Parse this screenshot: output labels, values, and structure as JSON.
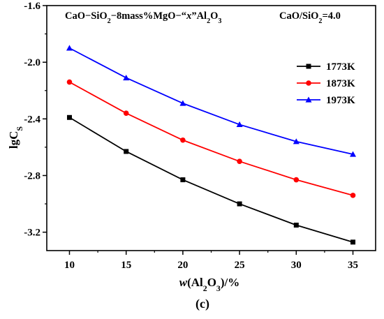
{
  "chart_data": {
    "type": "line",
    "title": {
      "formula": "CaO−SiO2−8mass%MgO−“x”Al2O3",
      "basicity": "CaO/SiO2=4.0"
    },
    "xlabel": "w(Al2O3)/%",
    "ylabel": "lgCS",
    "x": [
      10,
      15,
      20,
      25,
      30,
      35
    ],
    "xlim": [
      8,
      37
    ],
    "ylim": [
      -3.33,
      -1.6
    ],
    "x_ticks": [
      "10",
      "15",
      "20",
      "25",
      "30",
      "35"
    ],
    "y_ticks": [
      "-1.6",
      "-2.0",
      "-2.4",
      "-2.8",
      "-3.2"
    ],
    "grid": false,
    "legend_position": "top-right",
    "caption": "(c)",
    "series": [
      {
        "name": "1773K",
        "color": "#000000",
        "marker": "square",
        "values": [
          -2.39,
          -2.63,
          -2.83,
          -3.0,
          -3.15,
          -3.27
        ]
      },
      {
        "name": "1873K",
        "color": "#ff0000",
        "marker": "circle",
        "values": [
          -2.14,
          -2.36,
          -2.55,
          -2.7,
          -2.83,
          -2.94
        ]
      },
      {
        "name": "1973K",
        "color": "#0000ff",
        "marker": "triangle",
        "values": [
          -1.9,
          -2.11,
          -2.29,
          -2.44,
          -2.56,
          -2.65
        ]
      }
    ]
  }
}
